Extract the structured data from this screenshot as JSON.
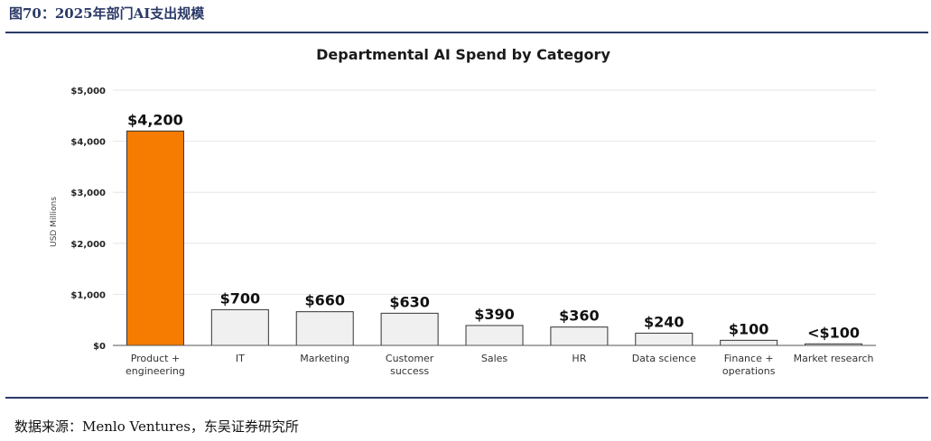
{
  "header": {
    "figure_title": "图70：2025年部门AI支出规模"
  },
  "source": {
    "text": "数据来源：Menlo Ventures，东吴证券研究所"
  },
  "colors": {
    "highlight": "#f57c00",
    "bar": "#f0f0f0",
    "bar_stroke": "#333333",
    "rule": "#2b3a67"
  },
  "chart_data": {
    "type": "bar",
    "title": "Departmental AI Spend by Category",
    "xlabel": "",
    "ylabel": "USD Millions",
    "ylim": [
      0,
      5000
    ],
    "yticks": [
      {
        "value": 0,
        "label": "$0"
      },
      {
        "value": 1000,
        "label": "$1,000"
      },
      {
        "value": 2000,
        "label": "$2,000"
      },
      {
        "value": 3000,
        "label": "$3,000"
      },
      {
        "value": 4000,
        "label": "$4,000"
      },
      {
        "value": 5000,
        "label": "$5,000"
      }
    ],
    "categories": [
      [
        "Product +",
        "engineering"
      ],
      [
        "IT"
      ],
      [
        "Marketing"
      ],
      [
        "Customer",
        "success"
      ],
      [
        "Sales"
      ],
      [
        "HR"
      ],
      [
        "Data science"
      ],
      [
        "Finance +",
        "operations"
      ],
      [
        "Market research"
      ]
    ],
    "values": [
      4200,
      700,
      660,
      630,
      390,
      360,
      240,
      100,
      30
    ],
    "data_labels": [
      "$4,200",
      "$700",
      "$660",
      "$630",
      "$390",
      "$360",
      "$240",
      "$100",
      "<$100"
    ],
    "highlight_index": 0,
    "grid": true
  }
}
